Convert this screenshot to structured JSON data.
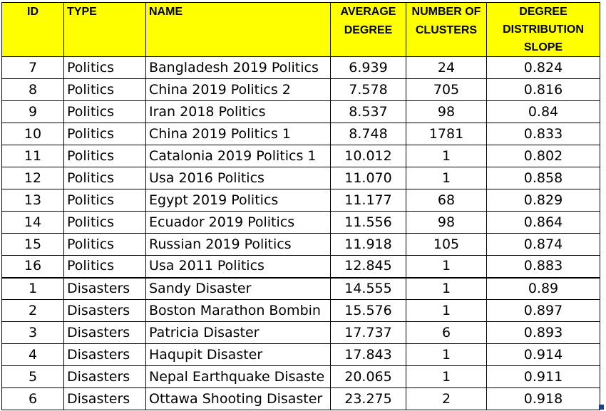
{
  "table": {
    "headers": {
      "id": "ID",
      "type": "TYPE",
      "name": "NAME",
      "avg_line1": "AVERAGE",
      "avg_line2": "DEGREE",
      "clusters_line1": "NUMBER OF",
      "clusters_line2": "CLUSTERS",
      "slope_line1": "DEGREE",
      "slope_line2": "DISTRIBUTION",
      "slope_line3": "SLOPE"
    },
    "rows": [
      {
        "id": "7",
        "type": "Politics",
        "name": "Bangladesh 2019 Politics",
        "avg": "6.939",
        "clusters": "24",
        "slope": "0.824"
      },
      {
        "id": "8",
        "type": "Politics",
        "name": "China 2019 Politics 2",
        "avg": "7.578",
        "clusters": "705",
        "slope": "0.816"
      },
      {
        "id": "9",
        "type": "Politics",
        "name": "Iran 2018 Politics",
        "avg": "8.537",
        "clusters": "98",
        "slope": "0.84"
      },
      {
        "id": "10",
        "type": "Politics",
        "name": "China 2019 Politics 1",
        "avg": "8.748",
        "clusters": "1781",
        "slope": "0.833"
      },
      {
        "id": "11",
        "type": "Politics",
        "name": "Catalonia 2019 Politics 1",
        "avg": "10.012",
        "clusters": "1",
        "slope": "0.802"
      },
      {
        "id": "12",
        "type": "Politics",
        "name": "Usa 2016 Politics",
        "avg": "11.070",
        "clusters": "1",
        "slope": "0.858"
      },
      {
        "id": "13",
        "type": "Politics",
        "name": "Egypt 2019 Politics",
        "avg": "11.177",
        "clusters": "68",
        "slope": "0.829"
      },
      {
        "id": "14",
        "type": "Politics",
        "name": "Ecuador 2019 Politics",
        "avg": "11.556",
        "clusters": "98",
        "slope": "0.864"
      },
      {
        "id": "15",
        "type": "Politics",
        "name": "Russian 2019 Politics",
        "avg": "11.918",
        "clusters": "105",
        "slope": "0.874"
      },
      {
        "id": "16",
        "type": "Politics",
        "name": "Usa 2011 Politics",
        "avg": "12.845",
        "clusters": "1",
        "slope": "0.883"
      },
      {
        "id": "1",
        "type": "Disasters",
        "name": "Sandy Disaster",
        "avg": "14.555",
        "clusters": "1",
        "slope": "0.89"
      },
      {
        "id": "2",
        "type": "Disasters",
        "name": "Boston Marathon Bombin",
        "avg": "15.576",
        "clusters": "1",
        "slope": "0.897"
      },
      {
        "id": "3",
        "type": "Disasters",
        "name": "Patricia Disaster",
        "avg": "17.737",
        "clusters": "6",
        "slope": "0.893"
      },
      {
        "id": "4",
        "type": "Disasters",
        "name": "Haqupit Disaster",
        "avg": "17.843",
        "clusters": "1",
        "slope": "0.914"
      },
      {
        "id": "5",
        "type": "Disasters",
        "name": "Nepal Earthquake Disaste",
        "avg": "20.065",
        "clusters": "1",
        "slope": "0.911"
      },
      {
        "id": "6",
        "type": "Disasters",
        "name": "Ottawa Shooting Disaster",
        "avg": "23.275",
        "clusters": "2",
        "slope": "0.918"
      }
    ]
  },
  "colors": {
    "header_fill": "#ffff00",
    "grid": "#000000",
    "corner_mark": "#1a3d8f"
  }
}
